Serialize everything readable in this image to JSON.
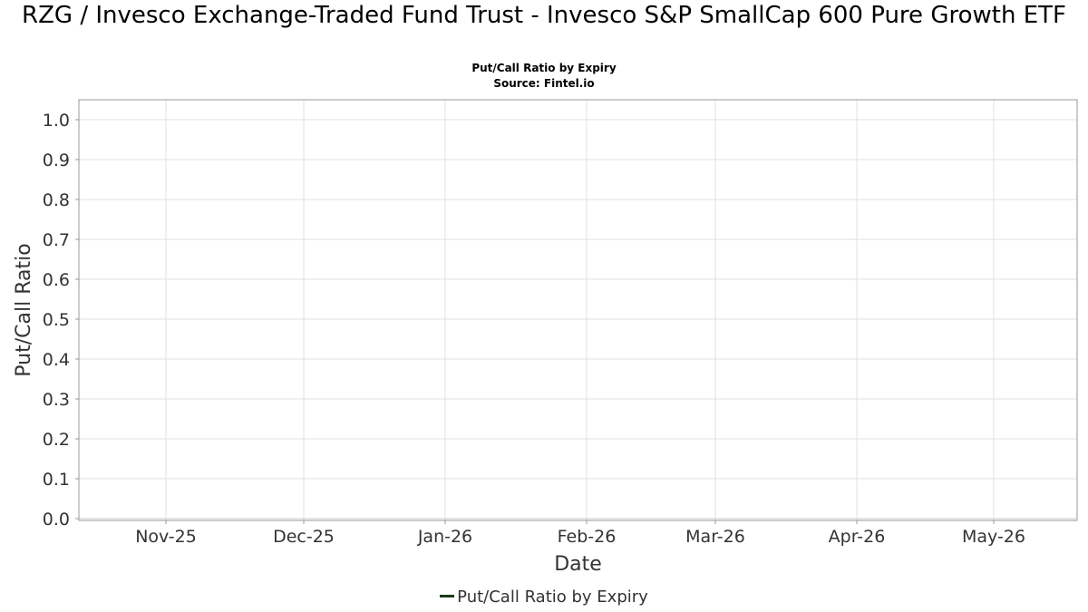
{
  "chart_data": {
    "type": "line",
    "title": "RZG / Invesco Exchange-Traded Fund Trust - Invesco S&P SmallCap 600 Pure Growth ETF",
    "subtitle": "Put/Call Ratio by Expiry",
    "source": "Source: Fintel.io",
    "xlabel": "Date",
    "ylabel": "Put/Call Ratio",
    "x_ticks": [
      "Nov-25",
      "Dec-25",
      "Jan-26",
      "Feb-26",
      "Mar-26",
      "Apr-26",
      "May-26"
    ],
    "y_ticks": [
      "0.0",
      "0.1",
      "0.2",
      "0.3",
      "0.4",
      "0.5",
      "0.6",
      "0.7",
      "0.8",
      "0.9",
      "1.0"
    ],
    "ylim": [
      0,
      1.05
    ],
    "grid": true,
    "legend_position": "bottom",
    "series": [
      {
        "name": "Put/Call Ratio by Expiry",
        "color": "#1a3d1a",
        "values": []
      }
    ]
  }
}
